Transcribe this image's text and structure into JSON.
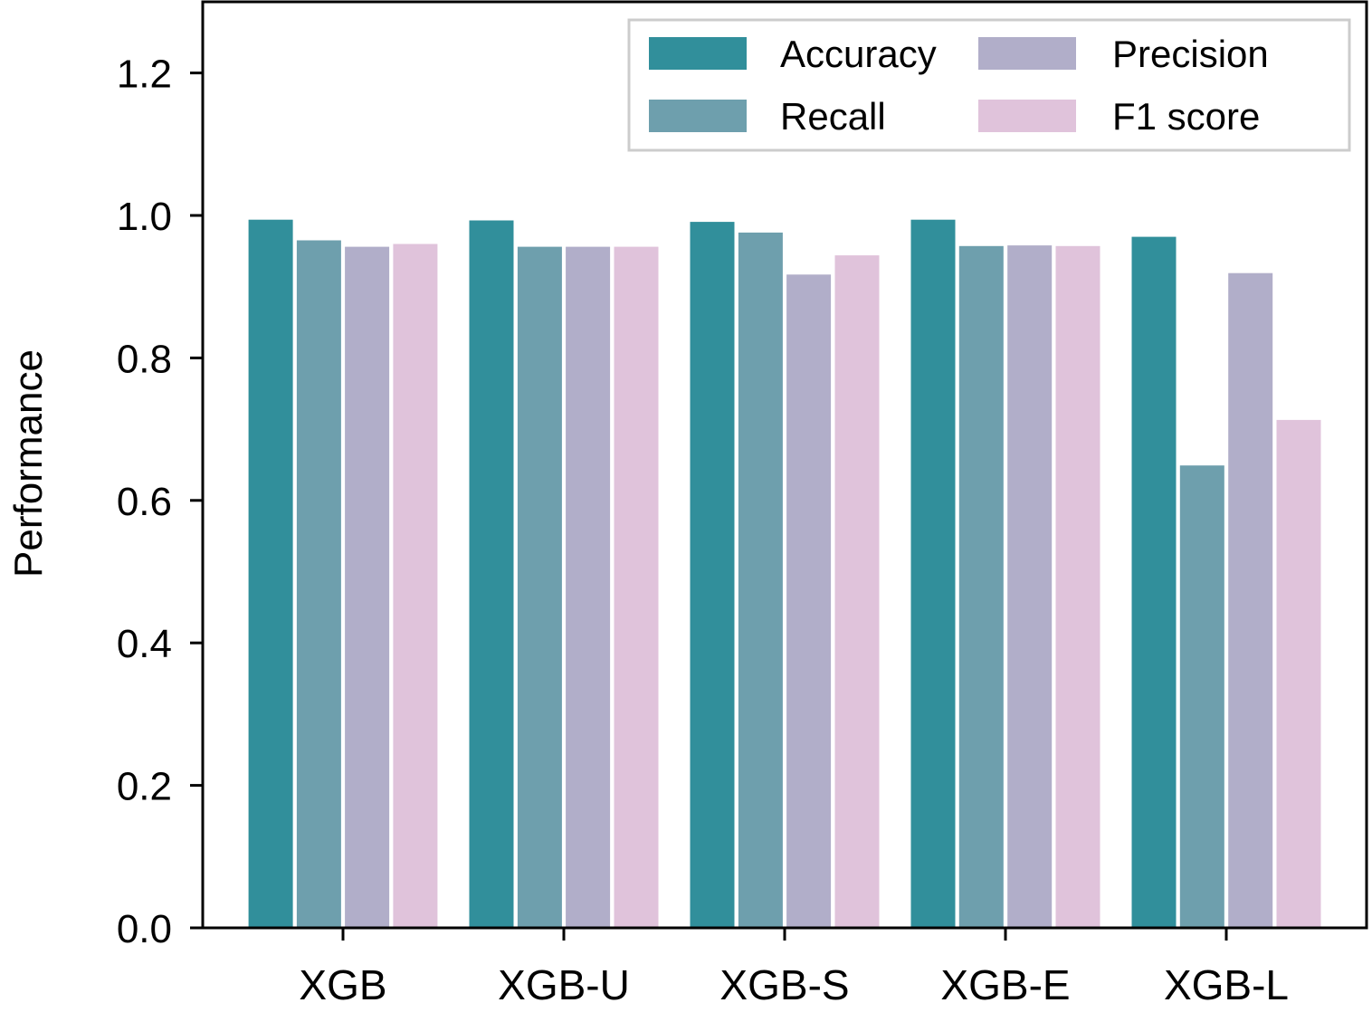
{
  "chart_data": {
    "type": "bar",
    "title": "",
    "xlabel": "",
    "ylabel": "Performance",
    "ylim": [
      0,
      1.3
    ],
    "yticks": [
      0.0,
      0.2,
      0.4,
      0.6,
      0.8,
      1.0,
      1.2
    ],
    "ytick_labels": [
      "0.0",
      "0.2",
      "0.4",
      "0.6",
      "0.8",
      "1.0",
      "1.2"
    ],
    "categories": [
      "XGB",
      "XGB-U",
      "XGB-S",
      "XGB-E",
      "XGB-L"
    ],
    "grid": false,
    "legend_position": "top-right",
    "legend_columns": 2,
    "series": [
      {
        "name": "Accuracy",
        "color": "#318f9b",
        "values": [
          0.994,
          0.993,
          0.991,
          0.994,
          0.97
        ]
      },
      {
        "name": "Recall",
        "color": "#6e9fad",
        "values": [
          0.965,
          0.956,
          0.976,
          0.957,
          0.649
        ]
      },
      {
        "name": "Precision",
        "color": "#b1aec9",
        "values": [
          0.956,
          0.956,
          0.917,
          0.958,
          0.919
        ]
      },
      {
        "name": "F1 score",
        "color": "#e0c3db",
        "values": [
          0.96,
          0.956,
          0.944,
          0.957,
          0.713
        ]
      }
    ]
  }
}
